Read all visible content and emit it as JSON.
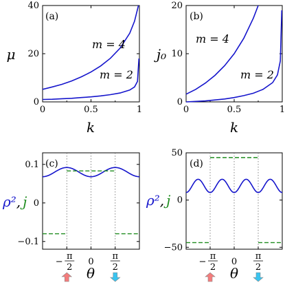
{
  "chart_data": [
    {
      "panel": "(a)",
      "type": "line",
      "xlabel": "k",
      "ylabel": "μ",
      "xlim": [
        0,
        1
      ],
      "ylim": [
        0,
        40
      ],
      "xticks": [
        "0",
        "0.5",
        "1"
      ],
      "yticks": [
        "0",
        "20",
        "40"
      ],
      "series": [
        {
          "name": "m = 4",
          "color": "#1515cc",
          "x": [
            0,
            0.1,
            0.2,
            0.3,
            0.4,
            0.5,
            0.6,
            0.7,
            0.8,
            0.9,
            0.95,
            0.99
          ],
          "y": [
            5.2,
            6.2,
            7.3,
            8.7,
            10.4,
            12.4,
            14.9,
            18.1,
            22.3,
            28.5,
            33.5,
            40
          ]
        },
        {
          "name": "m = 2",
          "color": "#1515cc",
          "x": [
            0,
            0.1,
            0.2,
            0.3,
            0.4,
            0.5,
            0.6,
            0.7,
            0.8,
            0.9,
            0.95,
            0.98,
            0.995
          ],
          "y": [
            1.0,
            1.1,
            1.3,
            1.5,
            1.8,
            2.1,
            2.5,
            3.0,
            3.7,
            4.9,
            6.2,
            8.5,
            18
          ]
        }
      ]
    },
    {
      "panel": "(b)",
      "type": "line",
      "xlabel": "k",
      "ylabel": "j₀",
      "xlim": [
        0,
        1
      ],
      "ylim": [
        0,
        20
      ],
      "xticks": [
        "0",
        "0.5",
        "1"
      ],
      "yticks": [
        "0",
        "10",
        "20"
      ],
      "series": [
        {
          "name": "m = 4",
          "color": "#1515cc",
          "x": [
            0,
            0.1,
            0.2,
            0.3,
            0.4,
            0.5,
            0.6,
            0.7,
            0.75
          ],
          "y": [
            1.6,
            2.6,
            3.9,
            5.5,
            7.5,
            10.0,
            13.2,
            17.4,
            20
          ]
        },
        {
          "name": "m = 2",
          "color": "#1515cc",
          "x": [
            0,
            0.1,
            0.2,
            0.3,
            0.4,
            0.5,
            0.6,
            0.7,
            0.8,
            0.9,
            0.95,
            0.98,
            0.995
          ],
          "y": [
            0.0,
            0.1,
            0.2,
            0.4,
            0.6,
            0.9,
            1.3,
            1.8,
            2.6,
            4.0,
            5.6,
            8.5,
            19
          ]
        }
      ]
    },
    {
      "panel": "(c)",
      "type": "line",
      "xlabel": "θ",
      "ylabel": [
        "ρ²",
        ",",
        "j"
      ],
      "xlim": [
        -3.14159,
        3.14159
      ],
      "ylim": [
        -0.12,
        0.13
      ],
      "xticks": [
        {
          "value": -1.5708,
          "label": "−π/2"
        },
        {
          "value": 0,
          "label": "0"
        },
        {
          "value": 1.5708,
          "label": "π/2"
        }
      ],
      "yticks": [
        {
          "value": 0.1,
          "label": "0.1"
        },
        {
          "value": 0,
          "label": "0"
        },
        {
          "value": -0.1,
          "label": "−0.1"
        }
      ],
      "rho2": {
        "mean": 0.08,
        "amplitude": 0.012,
        "harmonic": 2,
        "color": "#1515cc"
      },
      "j": {
        "levels": [
          {
            "from": -3.14159,
            "to": -1.5708,
            "value": -0.08
          },
          {
            "from": -1.5708,
            "to": 1.5708,
            "value": 0.083
          },
          {
            "from": 1.5708,
            "to": 3.14159,
            "value": -0.08
          }
        ],
        "color": "#1e8c1e"
      }
    },
    {
      "panel": "(d)",
      "type": "line",
      "xlabel": "θ",
      "ylabel": [
        "ρ²",
        ",",
        "j"
      ],
      "xlim": [
        -3.14159,
        3.14159
      ],
      "ylim": [
        -52,
        50
      ],
      "xticks": [
        {
          "value": -1.5708,
          "label": "−π/2"
        },
        {
          "value": 0,
          "label": "0"
        },
        {
          "value": 1.5708,
          "label": "π/2"
        }
      ],
      "yticks": [
        {
          "value": 50,
          "label": "50"
        },
        {
          "value": 0,
          "label": "0"
        },
        {
          "value": -50,
          "label": "−50"
        }
      ],
      "rho2": {
        "mean": 15,
        "amplitude": 7,
        "harmonic": 4,
        "color": "#1515cc"
      },
      "j": {
        "levels": [
          {
            "from": -3.14159,
            "to": -1.5708,
            "value": -45
          },
          {
            "from": -1.5708,
            "to": 1.5708,
            "value": 45
          },
          {
            "from": 1.5708,
            "to": 3.14159,
            "value": -45
          }
        ],
        "color": "#1e8c1e"
      }
    }
  ],
  "arrows": {
    "left_color": "#f47c7c",
    "right_color": "#39c4f0"
  }
}
